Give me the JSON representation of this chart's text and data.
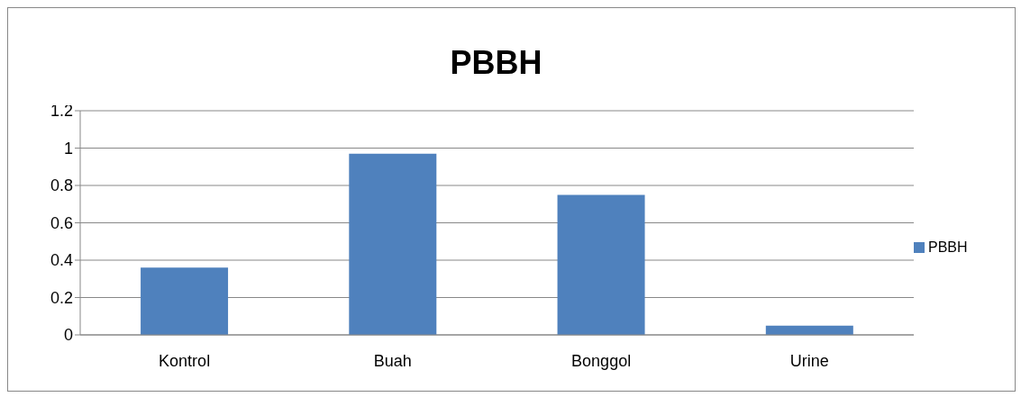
{
  "chart_data": {
    "type": "bar",
    "title": "PBBH",
    "categories": [
      "Kontrol",
      "Buah",
      "Bonggol",
      "Urine"
    ],
    "series": [
      {
        "name": "PBBH",
        "color": "#4f81bd",
        "values": [
          0.36,
          0.97,
          0.75,
          0.05
        ]
      }
    ],
    "ylim": [
      0,
      1.2
    ],
    "yticks": [
      0,
      0.2,
      0.4,
      0.6,
      0.8,
      1,
      1.2
    ],
    "grid": "y",
    "legend": "right"
  }
}
